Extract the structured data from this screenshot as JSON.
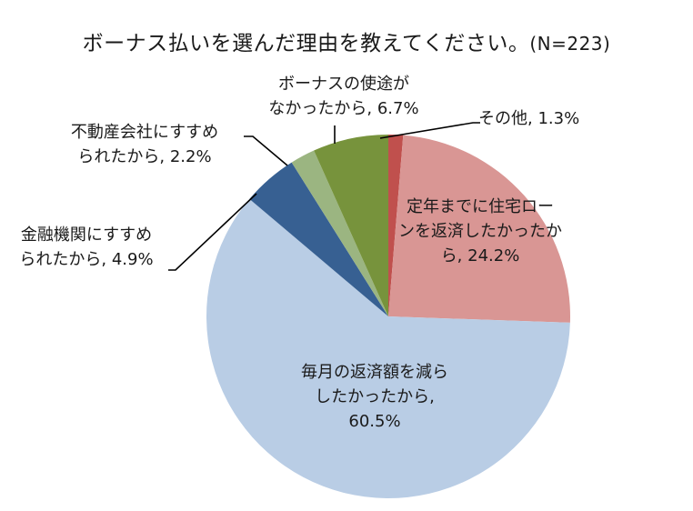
{
  "chart_data": {
    "type": "pie",
    "title": "ボーナス払いを選んだ理由を教えてください。(N=223)",
    "title_main": "ボーナス払いを選んだ理由を教えてください。",
    "title_n": "(N=223)",
    "start_angle_deg": 0,
    "direction": "clockwise",
    "slices": [
      {
        "label": "その他",
        "value": 1.3,
        "color": "#c0504d"
      },
      {
        "label": "定年までに住宅ローンを返済したかったから",
        "value": 24.2,
        "color": "#d99694"
      },
      {
        "label": "毎月の返済額を減らしたかったから",
        "value": 60.5,
        "color": "#b9cde5"
      },
      {
        "label": "金融機関にすすめられたから",
        "value": 4.9,
        "color": "#376092"
      },
      {
        "label": "不動産会社にすすめられたから",
        "value": 2.2,
        "color": "#9bb581"
      },
      {
        "label": "ボーナスの使途がなかったから",
        "value": 6.7,
        "color": "#77933c"
      }
    ],
    "data_labels": [
      {
        "line1": "その他, 1.3%",
        "line2": "",
        "line3": ""
      },
      {
        "line1": "定年までに住宅ロー",
        "line2": "ンを返済したかったか",
        "line3": "ら, 24.2%"
      },
      {
        "line1": "毎月の返済額を減ら",
        "line2": "したかったから,",
        "line3": "60.5%"
      },
      {
        "line1": "金融機関にすすめ",
        "line2": "られたから, 4.9%",
        "line3": ""
      },
      {
        "line1": "不動産会社にすすめ",
        "line2": "られたから, 2.2%",
        "line3": ""
      },
      {
        "line1": "ボーナスの使途が",
        "line2": "なかったから, 6.7%",
        "line3": ""
      }
    ],
    "legend": "none",
    "units": "%"
  }
}
